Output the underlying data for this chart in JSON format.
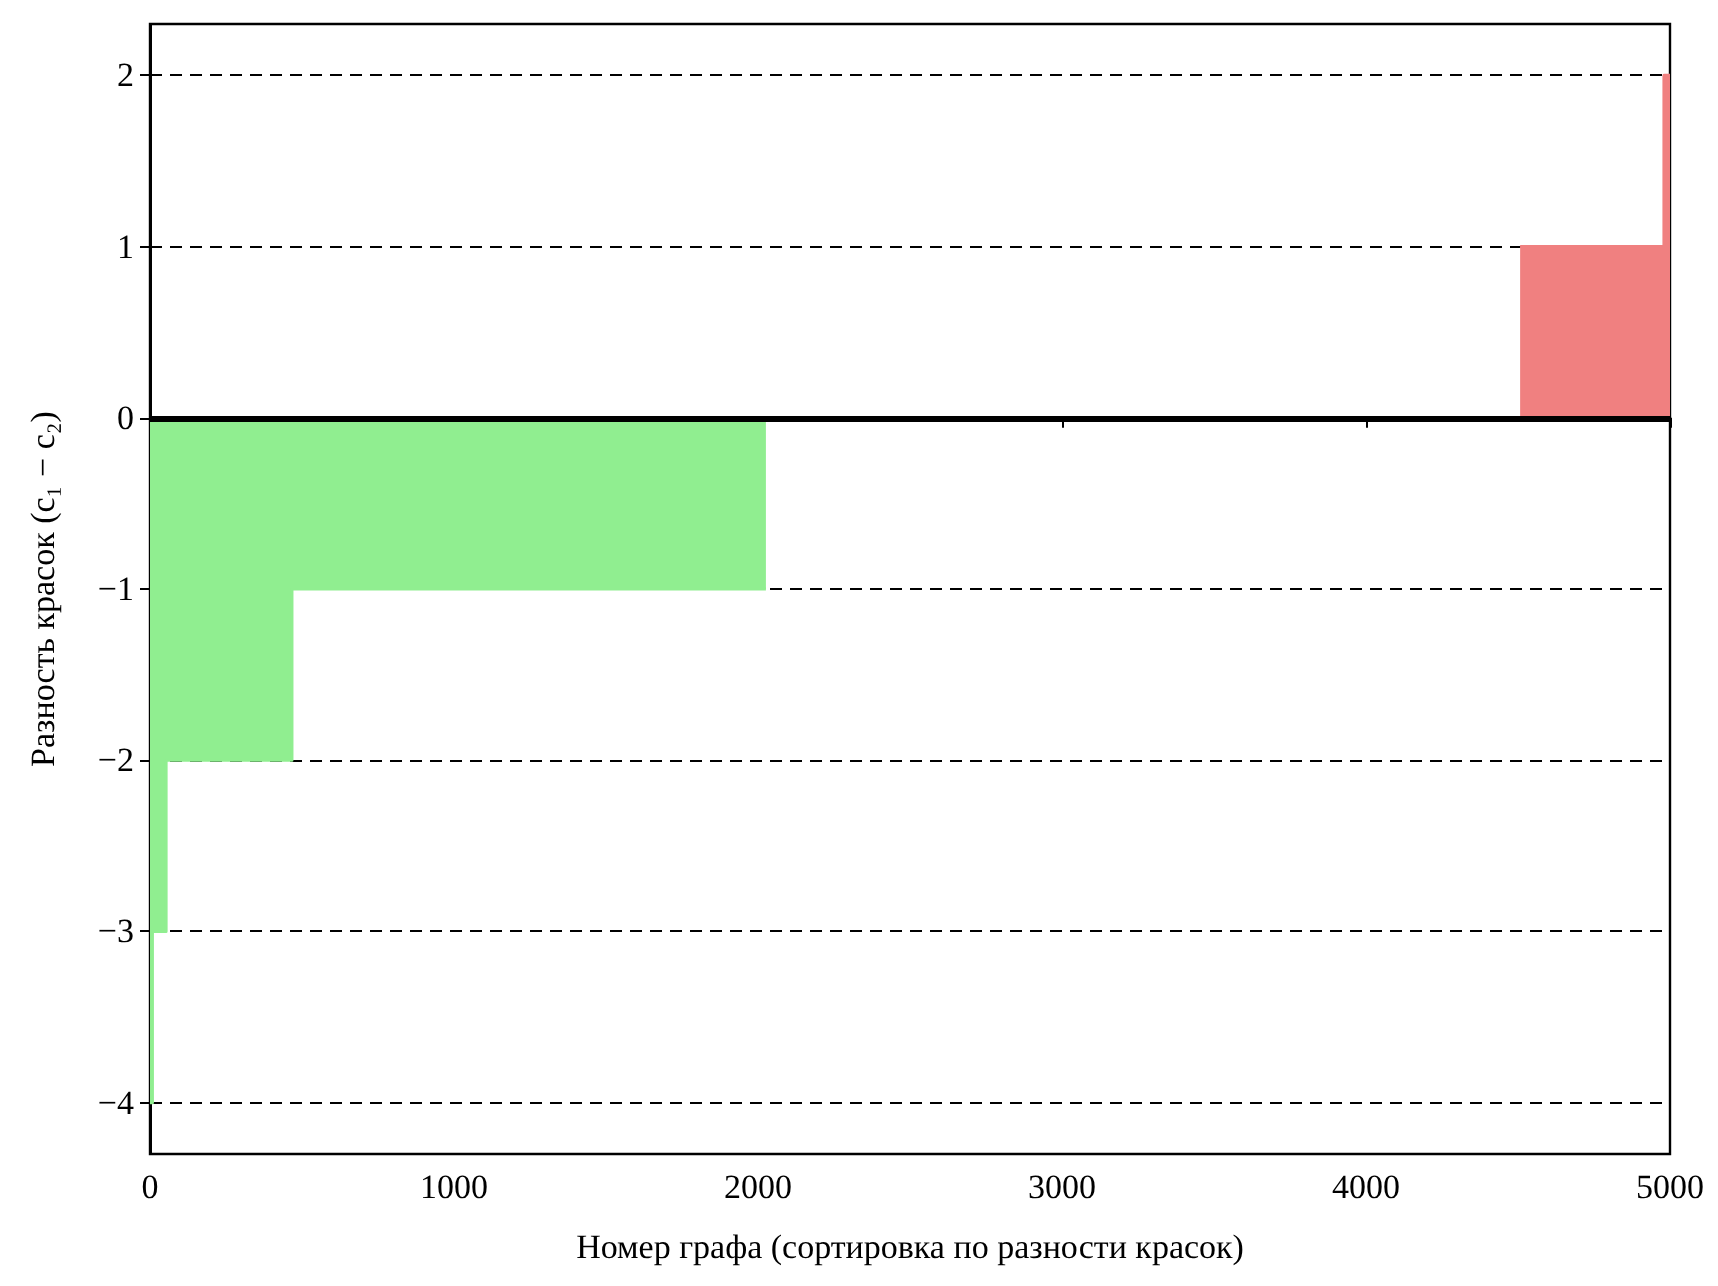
{
  "chart_data": {
    "type": "area",
    "xlabel": "Номер графа (сортировка по разности красок)",
    "ylabel": "Разность красок (c₁ − c₂)",
    "series": [
      {
        "color": "#90ee90",
        "x": [
          0,
          8,
          8,
          53,
          53,
          467,
          467,
          2026
        ],
        "values": [
          -4,
          -4,
          -3,
          -3,
          -2,
          -2,
          -1,
          -1
        ]
      },
      {
        "color": "#f08080",
        "x": [
          4507,
          4980,
          4980,
          5000
        ],
        "values": [
          1,
          1,
          2,
          2
        ]
      }
    ],
    "xlim": [
      0,
      5000
    ],
    "xticks": [
      0,
      1000,
      2000,
      3000,
      4000,
      5000
    ],
    "ylim": [
      -4.3,
      2.3
    ],
    "yticks": [
      {
        "value": -4,
        "label": "−4"
      },
      {
        "value": -3,
        "label": "−3"
      },
      {
        "value": -2,
        "label": "−2"
      },
      {
        "value": -1,
        "label": "−1"
      },
      0,
      1,
      2
    ],
    "grid": "y",
    "ref_lines": [
      {
        "axis": "y",
        "value": 0,
        "color": "#000000",
        "line_style": "solid"
      }
    ]
  }
}
